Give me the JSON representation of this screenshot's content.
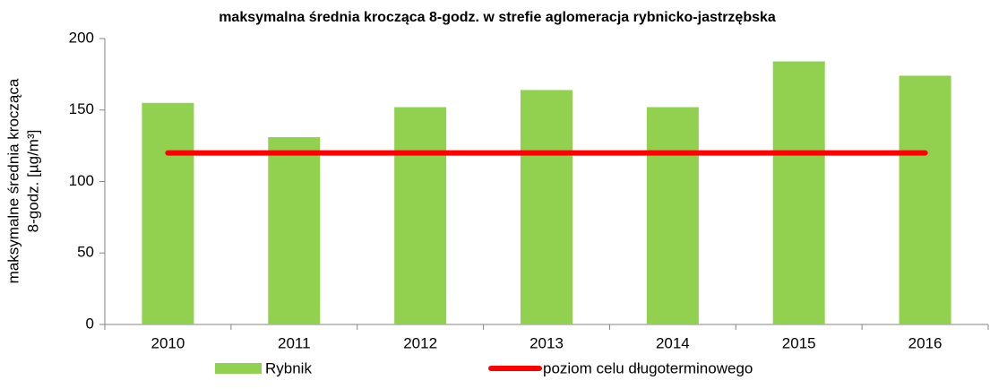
{
  "chart_data": {
    "type": "bar",
    "title": "maksymalna średnia krocząca 8-godz. w strefie aglomeracja rybnicko-jastrzębska",
    "y_label": [
      "maksymalne średnia krocząca",
      "8-godz. [µg/m³]"
    ],
    "categories": [
      "2010",
      "2011",
      "2012",
      "2013",
      "2014",
      "2015",
      "2016"
    ],
    "series": [
      {
        "name": "Rybnik",
        "type": "bar",
        "color": "#92d050",
        "values": [
          155,
          131,
          152,
          164,
          152,
          184,
          174
        ]
      },
      {
        "name": "poziom celu długoterminowego",
        "type": "line",
        "color": "#ff0000",
        "values": [
          120,
          120,
          120,
          120,
          120,
          120,
          120
        ]
      }
    ],
    "ylim": [
      0,
      200
    ],
    "yticks": [
      0,
      50,
      100,
      150,
      200
    ],
    "grid": false,
    "legend": "bottom"
  }
}
